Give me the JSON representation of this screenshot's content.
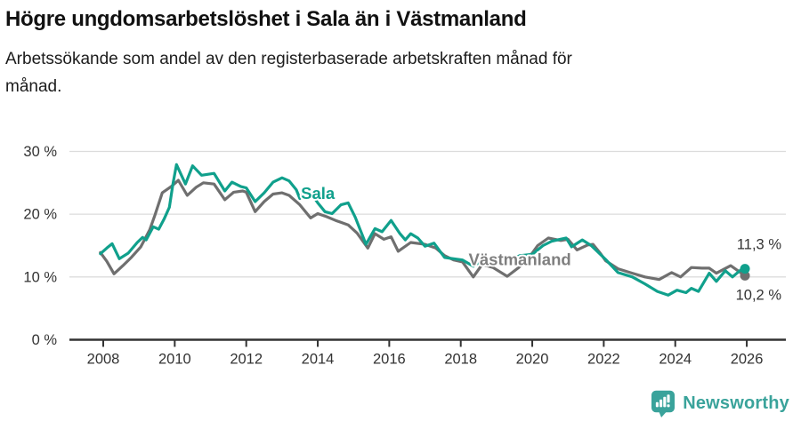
{
  "header": {
    "title": "Högre ungdomsarbetslöshet i Sala än i Västmanland",
    "subtitle": "Arbetssökande som andel av den registerbaserade arbetskraften månad för månad."
  },
  "chart_data": {
    "type": "line",
    "title": "Högre ungdomsarbetslöshet i Sala än i Västmanland",
    "subtitle": "Arbetssökande som andel av den registerbaserade arbetskraften månad för månad.",
    "unit": "%",
    "grid": "horizontal",
    "legend": "inline-labels",
    "x_axis": {
      "ticks": [
        2008,
        2010,
        2012,
        2014,
        2016,
        2018,
        2020,
        2022,
        2024,
        2026
      ],
      "range": [
        2007.8,
        2027.0
      ]
    },
    "y_axis": {
      "range": [
        0,
        30
      ],
      "ticks": [
        {
          "value": 0,
          "label": "0 %"
        },
        {
          "value": 10,
          "label": "10 %"
        },
        {
          "value": 20,
          "label": "20 %"
        },
        {
          "value": 30,
          "label": "30 %"
        }
      ]
    },
    "series": [
      {
        "name": "Västmanland",
        "color": "#6f6f6f",
        "label_color": "#7f7f7f",
        "end_value": 10.2,
        "end_label": "10,2 %",
        "name_label_pos": {
          "x": 2018.22,
          "y": 12.7
        },
        "points": [
          [
            2007.92,
            13.9
          ],
          [
            2008.1,
            12.5
          ],
          [
            2008.3,
            10.5
          ],
          [
            2008.55,
            11.8
          ],
          [
            2008.8,
            13.2
          ],
          [
            2009.05,
            14.8
          ],
          [
            2009.3,
            17.5
          ],
          [
            2009.45,
            19.9
          ],
          [
            2009.65,
            23.4
          ],
          [
            2009.9,
            24.4
          ],
          [
            2010.1,
            25.4
          ],
          [
            2010.35,
            23.0
          ],
          [
            2010.6,
            24.3
          ],
          [
            2010.8,
            25.0
          ],
          [
            2011.1,
            24.8
          ],
          [
            2011.4,
            22.3
          ],
          [
            2011.65,
            23.5
          ],
          [
            2011.9,
            23.7
          ],
          [
            2012.0,
            23.5
          ],
          [
            2012.25,
            20.4
          ],
          [
            2012.5,
            22.0
          ],
          [
            2012.75,
            23.2
          ],
          [
            2013.0,
            23.4
          ],
          [
            2013.2,
            23.0
          ],
          [
            2013.5,
            21.5
          ],
          [
            2013.8,
            19.4
          ],
          [
            2014.0,
            20.1
          ],
          [
            2014.25,
            19.6
          ],
          [
            2014.5,
            19.0
          ],
          [
            2014.85,
            18.3
          ],
          [
            2015.1,
            17.0
          ],
          [
            2015.4,
            14.6
          ],
          [
            2015.6,
            16.9
          ],
          [
            2015.85,
            16.0
          ],
          [
            2016.05,
            16.4
          ],
          [
            2016.25,
            14.1
          ],
          [
            2016.6,
            15.5
          ],
          [
            2017.0,
            15.2
          ],
          [
            2017.3,
            14.6
          ],
          [
            2017.55,
            13.4
          ],
          [
            2017.8,
            12.7
          ],
          [
            2018.05,
            12.4
          ],
          [
            2018.35,
            10.0
          ],
          [
            2018.6,
            12.0
          ],
          [
            2018.9,
            11.5
          ],
          [
            2019.3,
            10.1
          ],
          [
            2019.6,
            11.4
          ],
          [
            2019.9,
            13.0
          ],
          [
            2020.15,
            15.0
          ],
          [
            2020.45,
            16.2
          ],
          [
            2020.8,
            15.8
          ],
          [
            2021.0,
            16.0
          ],
          [
            2021.25,
            14.3
          ],
          [
            2021.55,
            15.1
          ],
          [
            2021.7,
            15.2
          ],
          [
            2021.9,
            13.8
          ],
          [
            2022.05,
            12.6
          ],
          [
            2022.4,
            11.3
          ],
          [
            2022.8,
            10.6
          ],
          [
            2023.15,
            10.0
          ],
          [
            2023.55,
            9.6
          ],
          [
            2023.9,
            10.7
          ],
          [
            2024.15,
            10.0
          ],
          [
            2024.45,
            11.5
          ],
          [
            2024.75,
            11.4
          ],
          [
            2024.95,
            11.4
          ],
          [
            2025.15,
            10.6
          ],
          [
            2025.55,
            11.8
          ],
          [
            2025.95,
            10.2
          ]
        ]
      },
      {
        "name": "Sala",
        "color": "#10a08c",
        "label_color": "#10a08c",
        "end_value": 11.3,
        "end_label": "11,3 %",
        "name_label_pos": {
          "x": 2013.53,
          "y": 23.3
        },
        "points": [
          [
            2007.92,
            13.7
          ],
          [
            2008.1,
            14.6
          ],
          [
            2008.25,
            15.3
          ],
          [
            2008.45,
            12.9
          ],
          [
            2008.7,
            13.8
          ],
          [
            2008.95,
            15.5
          ],
          [
            2009.1,
            16.3
          ],
          [
            2009.2,
            15.9
          ],
          [
            2009.4,
            18.0
          ],
          [
            2009.55,
            17.6
          ],
          [
            2009.7,
            19.2
          ],
          [
            2009.85,
            21.1
          ],
          [
            2009.95,
            24.8
          ],
          [
            2010.05,
            27.9
          ],
          [
            2010.3,
            24.8
          ],
          [
            2010.5,
            27.7
          ],
          [
            2010.75,
            26.2
          ],
          [
            2011.1,
            26.5
          ],
          [
            2011.4,
            23.7
          ],
          [
            2011.6,
            25.1
          ],
          [
            2011.85,
            24.4
          ],
          [
            2012.0,
            24.2
          ],
          [
            2012.25,
            22.0
          ],
          [
            2012.5,
            23.4
          ],
          [
            2012.75,
            25.1
          ],
          [
            2013.0,
            25.8
          ],
          [
            2013.2,
            25.3
          ],
          [
            2013.4,
            23.9
          ],
          [
            2013.5,
            22.5
          ],
          [
            2013.7,
            24.3
          ],
          [
            2014.0,
            21.8
          ],
          [
            2014.2,
            20.4
          ],
          [
            2014.4,
            20.1
          ],
          [
            2014.65,
            21.5
          ],
          [
            2014.85,
            21.8
          ],
          [
            2015.05,
            19.5
          ],
          [
            2015.35,
            15.2
          ],
          [
            2015.6,
            17.7
          ],
          [
            2015.8,
            17.2
          ],
          [
            2016.05,
            19.0
          ],
          [
            2016.3,
            16.9
          ],
          [
            2016.45,
            15.9
          ],
          [
            2016.6,
            16.9
          ],
          [
            2016.8,
            16.2
          ],
          [
            2017.0,
            14.9
          ],
          [
            2017.25,
            15.4
          ],
          [
            2017.55,
            13.1
          ],
          [
            2017.8,
            12.9
          ],
          [
            2018.05,
            12.7
          ],
          [
            2018.35,
            11.7
          ],
          [
            2018.55,
            12.5
          ],
          [
            2018.8,
            13.0
          ],
          [
            2019.05,
            12.7
          ],
          [
            2019.3,
            12.4
          ],
          [
            2019.65,
            13.4
          ],
          [
            2020.0,
            13.6
          ],
          [
            2020.3,
            15.0
          ],
          [
            2020.55,
            15.7
          ],
          [
            2020.95,
            16.2
          ],
          [
            2021.1,
            14.8
          ],
          [
            2021.4,
            15.9
          ],
          [
            2021.65,
            15.0
          ],
          [
            2022.05,
            12.8
          ],
          [
            2022.4,
            10.7
          ],
          [
            2022.8,
            10.0
          ],
          [
            2023.15,
            8.9
          ],
          [
            2023.5,
            7.7
          ],
          [
            2023.8,
            7.1
          ],
          [
            2024.05,
            7.9
          ],
          [
            2024.3,
            7.5
          ],
          [
            2024.45,
            8.2
          ],
          [
            2024.65,
            7.7
          ],
          [
            2024.95,
            10.6
          ],
          [
            2025.15,
            9.3
          ],
          [
            2025.4,
            11.0
          ],
          [
            2025.6,
            10.0
          ],
          [
            2025.85,
            11.2
          ],
          [
            2025.95,
            11.3
          ]
        ]
      }
    ]
  },
  "colors": {
    "grid": "#dcdcdc",
    "axis": "#333333",
    "tick_text": "#333333",
    "value_label": "#333333",
    "brand_teal": "#3aa39b",
    "background": "#ffffff"
  },
  "footer": {
    "brand": "Newsworthy"
  }
}
